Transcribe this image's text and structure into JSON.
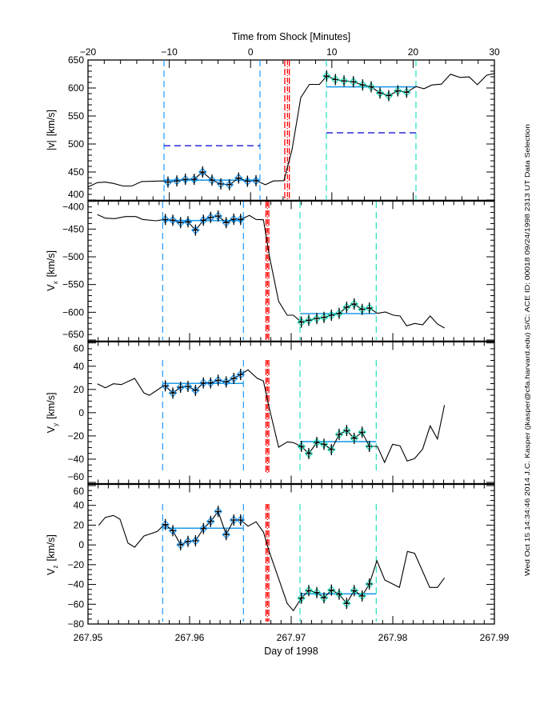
{
  "chart_data": [
    {
      "type": "line",
      "panel": "speed",
      "top_axis": {
        "title": "Time from Shock [Minutes]",
        "range": [
          -20,
          30
        ],
        "ticks": [
          "-20",
          "-10",
          "0",
          "10",
          "20",
          "30"
        ],
        "minor_step": 2
      },
      "ylabel": {
        "symbol": "|v|",
        "sub": "",
        "unit": "[km/s]"
      },
      "ylim": [
        400,
        650
      ],
      "yticks": [
        "400",
        "450",
        "500",
        "550",
        "600",
        "650"
      ],
      "y_minor_step": 10,
      "before": {
        "x": [
          -20,
          -18.85,
          -17.9,
          -16.9,
          -15.7,
          -14.6,
          -13.4,
          -10.8
        ],
        "y": [
          423.4,
          431,
          432,
          429.7,
          425,
          425,
          433,
          434
        ]
      },
      "upstream": {
        "x": [
          -10.16,
          -9.07,
          -8.02,
          -6.94,
          -5.9,
          -4.74,
          -3.66,
          -2.6,
          -1.47,
          -0.38,
          0.67
        ],
        "y": [
          432,
          434,
          437,
          437,
          450,
          435.5,
          428.7,
          427.3,
          439.2,
          433.5,
          434.5
        ]
      },
      "between": {
        "x": [
          1.82,
          2.8,
          4.1,
          5.1,
          6.18,
          7.23,
          8.47
        ],
        "y": [
          427.3,
          434,
          434.5,
          489.5,
          583,
          606.5,
          606.5
        ]
      },
      "downstream": {
        "x": [
          9.36,
          10.44,
          11.5,
          12.65,
          13.79,
          14.84,
          15.93,
          17.0,
          18.12,
          19.2
        ],
        "y": [
          621.3,
          615.1,
          612.6,
          611.2,
          605.5,
          602.2,
          591.1,
          586.4,
          595,
          592.5
        ]
      },
      "after": {
        "x": [
          20.35,
          21.34,
          22.32,
          23.47,
          24.6,
          25.77,
          26.9,
          27.9,
          29.04,
          30
        ],
        "y": [
          602.6,
          598.7,
          605.5,
          606.9,
          624.6,
          618.8,
          619.8,
          605.9,
          622.7,
          626
        ]
      },
      "upstream_window": [
        -10.65,
        1.16
      ],
      "downstream_window": [
        9.33,
        20.35
      ],
      "upstream_mean": 435.5,
      "downstream_mean": 602,
      "reference_levels": {
        "upstream": 497,
        "downstream": 520
      },
      "shock_lines": [
        4.21,
        4.54,
        4.77
      ]
    },
    {
      "type": "line",
      "panel": "vx",
      "ylabel": {
        "symbol": "V",
        "sub": "x",
        "unit": "[km/s]"
      },
      "ylim": [
        -650,
        -400
      ],
      "yticks": [
        "-650",
        "-600",
        "-550",
        "-500",
        "-450",
        "-400"
      ],
      "y_minor_step": 10,
      "before": {
        "x": [
          267.95092,
          267.95171,
          267.95262,
          267.95368,
          267.95472,
          267.95538,
          267.95669,
          267.95735
        ],
        "y": [
          -424,
          -430.3,
          -431.2,
          -427.4,
          -427.4,
          -432.6,
          -435,
          -433.2
        ]
      },
      "upstream": {
        "x": [
          267.95761,
          267.95835,
          267.95911,
          267.95984,
          267.96058,
          267.96136,
          267.96207,
          267.96281,
          267.9636,
          267.96435,
          267.96502
        ],
        "y": [
          -432.6,
          -434,
          -438.4,
          -436.9,
          -451.9,
          -434,
          -428.9,
          -426.4,
          -438.4,
          -432.2,
          -432.6
        ]
      },
      "between": {
        "x": [
          267.96588,
          267.96654,
          267.96727,
          267.96785,
          267.96876,
          267.96961,
          267.97021
        ],
        "y": [
          -425.4,
          -432.6,
          -433.2,
          -498.5,
          -580.3,
          -605.3,
          -605.3
        ]
      },
      "downstream": {
        "x": [
          267.971,
          267.97173,
          267.97252,
          267.97323,
          267.97396,
          267.97472,
          267.97546,
          267.9762,
          267.97698,
          267.97769
        ],
        "y": [
          -617.8,
          -614.4,
          -611.1,
          -609.2,
          -605.3,
          -602,
          -590.9,
          -585.1,
          -594.8,
          -592.3
        ]
      },
      "after": {
        "x": [
          267.97848,
          267.97927,
          267.98006,
          267.98071,
          267.98136,
          267.98215,
          267.98294,
          267.98368,
          267.98439,
          267.98509
        ],
        "y": [
          -602,
          -599.5,
          -605.3,
          -606.7,
          -624.5,
          -620.1,
          -622.6,
          -606.7,
          -621.1,
          -628.4
        ]
      },
      "upstream_window": [
        267.95735,
        267.9653
      ],
      "downstream_window": [
        267.97087,
        267.97837
      ],
      "upstream_mean": -434.6,
      "downstream_mean": -602.4,
      "shock_lines": [
        267.96752,
        267.96766,
        267.9678
      ]
    },
    {
      "type": "line",
      "panel": "vy",
      "ylabel": {
        "symbol": "V",
        "sub": "y",
        "unit": "[km/s]"
      },
      "ylim": [
        -60,
        60
      ],
      "yticks": [
        "-60",
        "-40",
        "-20",
        "0",
        "20",
        "40",
        "60"
      ],
      "y_minor_step": 5,
      "before": {
        "x": [
          267.95092,
          267.95171,
          267.9525,
          267.95328,
          267.95459,
          267.95551,
          267.95604,
          267.95735
        ],
        "y": [
          24.9,
          21.4,
          24.9,
          24.2,
          29.5,
          16.9,
          15,
          22.6
        ]
      },
      "upstream": {
        "x": [
          267.95761,
          267.95835,
          267.95911,
          267.95984,
          267.96058,
          267.96136,
          267.96207,
          267.96281,
          267.9636,
          267.96435,
          267.96502
        ],
        "y": [
          23.1,
          16.9,
          21.9,
          22.6,
          19.2,
          25.6,
          25.6,
          27.9,
          26.5,
          29.5,
          32.9
        ]
      },
      "between": {
        "x": [
          267.96575,
          267.96667,
          267.96727,
          267.9678,
          267.96876,
          267.96963,
          267.97021
        ],
        "y": [
          36.9,
          29.5,
          27.2,
          5.4,
          -29.7,
          -25.1,
          -25.8
        ]
      },
      "downstream": {
        "x": [
          267.971,
          267.97173,
          267.97252,
          267.97323,
          267.97396,
          267.97472,
          267.97546,
          267.9762,
          267.97698,
          267.97769
        ],
        "y": [
          -29,
          -35.2,
          -25.6,
          -27.2,
          -31.8,
          -18.7,
          -15.3,
          -22.1,
          -16.8,
          -29
        ]
      },
      "after": {
        "x": [
          267.97848,
          267.97919,
          267.97998,
          267.98071,
          267.98142,
          267.98215,
          267.98294,
          267.98368,
          267.98439,
          267.98509
        ],
        "y": [
          -29,
          -42.8,
          -27.2,
          -28.5,
          -41.6,
          -39.4,
          -31.3,
          -11.3,
          -22.6,
          6.6
        ]
      },
      "upstream_window": [
        267.95735,
        267.9653
      ],
      "downstream_window": [
        267.97087,
        267.97837
      ],
      "upstream_mean": 25.2,
      "downstream_mean": -24.9,
      "shock_lines": [
        267.96752,
        267.96766,
        267.9678
      ]
    },
    {
      "type": "line",
      "panel": "vz",
      "ylabel": {
        "symbol": "V",
        "sub": "z",
        "unit": "[km/s]"
      },
      "ylim": [
        -80,
        60
      ],
      "yticks": [
        "-80",
        "-60",
        "-40",
        "-20",
        "0",
        "20",
        "40",
        "60"
      ],
      "y_minor_step": 5,
      "bottom_axis": {
        "title": "Day of 1998",
        "range": [
          267.95,
          267.99
        ],
        "ticks": [
          "267.95",
          "267.96",
          "267.97",
          "267.98",
          "267.99"
        ],
        "minor_step": 0.001
      },
      "before": {
        "x": [
          267.95105,
          267.95171,
          267.9525,
          267.95315,
          267.95394,
          267.95459,
          267.95551,
          267.95683,
          267.95735
        ],
        "y": [
          19.8,
          27.9,
          29.8,
          26,
          1.8,
          -2.3,
          9,
          13.6,
          19
        ]
      },
      "upstream": {
        "x": [
          267.95761,
          267.95835,
          267.95911,
          267.95984,
          267.96058,
          267.96136,
          267.96207,
          267.96281,
          267.9636,
          267.96435,
          267.96502
        ],
        "y": [
          20.6,
          14.4,
          0.1,
          3.6,
          4.2,
          16.6,
          23.8,
          33.9,
          10.4,
          25.2,
          25.2
        ]
      },
      "between": {
        "x": [
          267.96575,
          267.96654,
          267.96727,
          267.96785,
          267.9689,
          267.96961,
          267.97021
        ],
        "y": [
          19,
          23.4,
          13.1,
          -7.1,
          -38.1,
          -59.2,
          -66.5
        ]
      },
      "downstream": {
        "x": [
          267.971,
          267.97173,
          267.97252,
          267.97323,
          267.97396,
          267.97472,
          267.97546,
          267.9762,
          267.97698,
          267.97769
        ],
        "y": [
          -53.8,
          -46.2,
          -48.2,
          -53.5,
          -45.7,
          -49.8,
          -59.2,
          -46.2,
          -51.6,
          -39.5
        ]
      },
      "after": {
        "x": [
          267.97843,
          267.97921,
          267.98065,
          267.98144,
          267.98215,
          267.98364,
          267.98439,
          267.98509
        ],
        "y": [
          -16,
          -35.5,
          -43,
          -6.6,
          -8.5,
          -43,
          -43,
          -33.3
        ]
      },
      "upstream_window": [
        267.95735,
        267.9653
      ],
      "downstream_window": [
        267.97087,
        267.97837
      ],
      "upstream_mean": 16.9,
      "downstream_mean": -49.5,
      "shock_lines": [
        267.96752,
        267.96766,
        267.9678
      ]
    }
  ],
  "footer": "Wed Oct 15 14:34:46 2014  J.C. Kasper (jkasper@cfa.harvard.edu)  S/C: ACE ID: 00018 09/24/1998  2313 UT Data Selection",
  "colors": {
    "trace": "#000000",
    "upstream": "#1e9bff",
    "downstream": "#22e0c0",
    "mean": "#1e9be6",
    "reference": "#0000cc",
    "shock": "#ff0000"
  }
}
